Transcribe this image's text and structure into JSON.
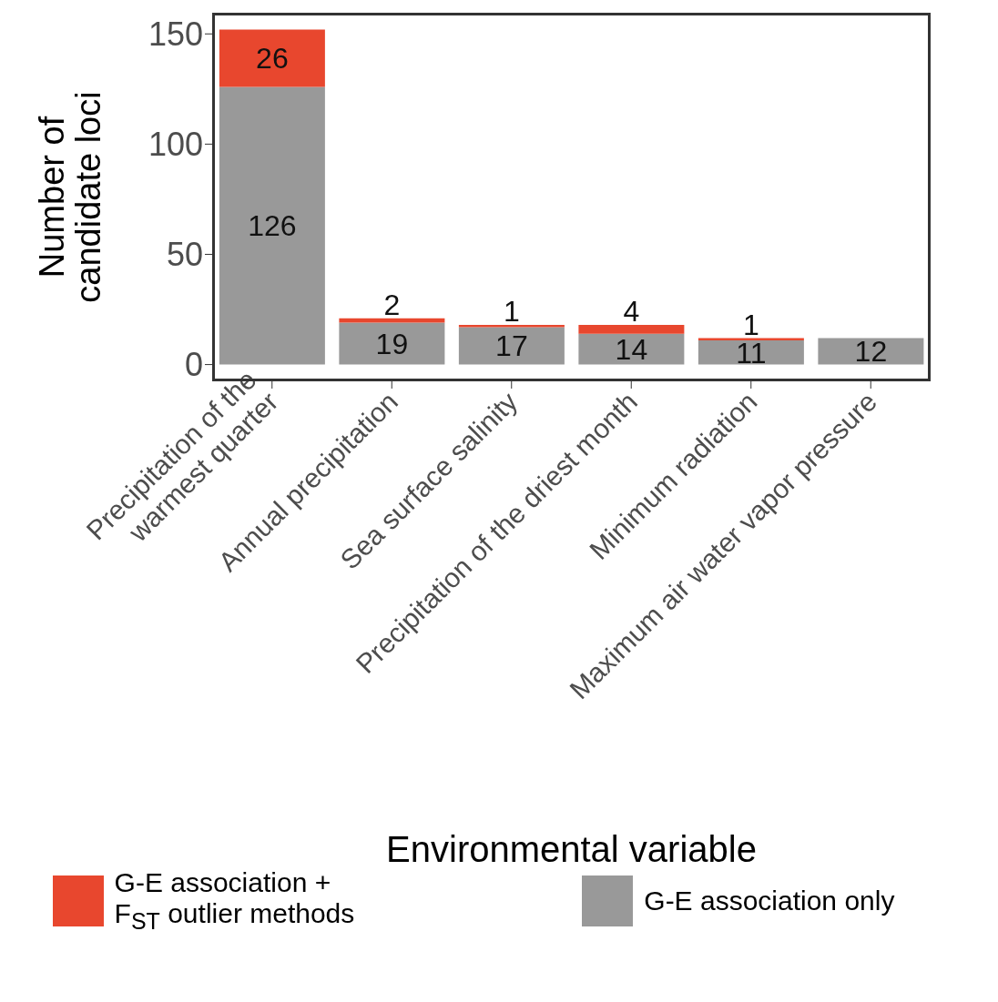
{
  "chart_data": {
    "type": "bar",
    "stacked": true,
    "xlabel": "Environmental variable",
    "ylabel": "Number of\ncandidate loci",
    "categories": [
      "Precipitation of the\nwarmest quarter",
      "Annual precipitation",
      "Sea surface salinity",
      "Precipitation of the driest month",
      "Minimum radiation",
      "Maximum air water vapor pressure"
    ],
    "series": [
      {
        "name": "G-E association only",
        "color": "#999999",
        "values": [
          126,
          19,
          17,
          14,
          11,
          12
        ]
      },
      {
        "name": "G-E association +\nF$_{ST}$ outlier methods",
        "color": "#e8472e",
        "values": [
          26,
          2,
          1,
          4,
          1,
          null
        ]
      }
    ],
    "ylim": [
      -7.6,
      159.6
    ],
    "yticks": [
      0,
      50,
      100,
      150
    ],
    "grid": false,
    "legend": "bottom",
    "data_labels": true
  }
}
